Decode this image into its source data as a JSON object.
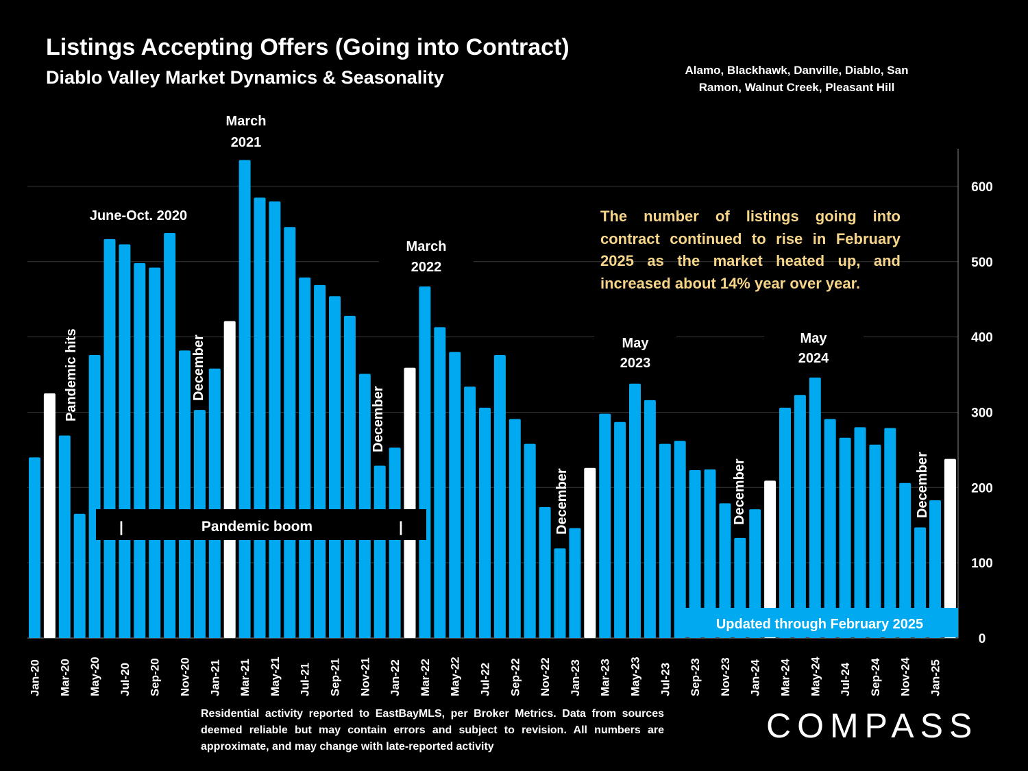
{
  "title": "Listings Accepting Offers (Going into Contract)",
  "subtitle": "Diablo Valley Market Dynamics & Seasonality",
  "region_lines": [
    "Alamo, Blackhawk, Danville, Diablo, San",
    "Ramon, Walnut Creek, Pleasant Hill"
  ],
  "note": "The number of listings going into contract continued to rise in February 2025 as the market heated up, and increased about 14% year over year.",
  "footnote": "Residential activity reported to EastBayMLS, per Broker Metrics. Data from sources deemed reliable but may contain errors and subject to revision. All numbers are approximate, and may change with late-reported activity",
  "logo_text": "COMPASS",
  "banner_text": "Updated through February 2025",
  "colors": {
    "bar": "#00a9f0",
    "highlight": "#ffffff",
    "note": "#f6d58a",
    "background": "#000000"
  },
  "annotations": {
    "pandemic_hits": "Pandemic hits",
    "june_oct_2020": "June-Oct. 2020",
    "march_2021": [
      "March",
      "2021"
    ],
    "march_2022": [
      "March",
      "2022"
    ],
    "may_2023": [
      "May",
      "2023"
    ],
    "may_2024": [
      "May",
      "2024"
    ],
    "december": "December",
    "pandemic_boom": "Pandemic boom",
    "boom_marker": "|"
  },
  "chart_data": {
    "type": "bar",
    "y_axis_side": "right",
    "ylim": [
      0,
      650
    ],
    "yticks": [
      0,
      100,
      200,
      300,
      400,
      500,
      600
    ],
    "grid": true,
    "categories": [
      "Jan-20",
      "Feb-20",
      "Mar-20",
      "Apr-20",
      "May-20",
      "Jun-20",
      "Jul-20",
      "Aug-20",
      "Sep-20",
      "Oct-20",
      "Nov-20",
      "Dec-20",
      "Jan-21",
      "Feb-21",
      "Mar-21",
      "Apr-21",
      "May-21",
      "Jun-21",
      "Jul-21",
      "Aug-21",
      "Sep-21",
      "Oct-21",
      "Nov-21",
      "Dec-21",
      "Jan-22",
      "Feb-22",
      "Mar-22",
      "Apr-22",
      "May-22",
      "Jun-22",
      "Jul-22",
      "Aug-22",
      "Sep-22",
      "Oct-22",
      "Nov-22",
      "Dec-22",
      "Jan-23",
      "Feb-23",
      "Mar-23",
      "Apr-23",
      "May-23",
      "Jun-23",
      "Jul-23",
      "Aug-23",
      "Sep-23",
      "Oct-23",
      "Nov-23",
      "Dec-23",
      "Jan-24",
      "Feb-24",
      "Mar-24",
      "Apr-24",
      "May-24",
      "Jun-24",
      "Jul-24",
      "Aug-24",
      "Sep-24",
      "Oct-24",
      "Nov-24",
      "Dec-24",
      "Jan-25",
      "Feb-25"
    ],
    "tick_labels": [
      "Jan-20",
      "Mar-20",
      "May-20",
      "Jul-20",
      "Sep-20",
      "Nov-20",
      "Jan-21",
      "Mar-21",
      "May-21",
      "Jul-21",
      "Sep-21",
      "Nov-21",
      "Jan-22",
      "Mar-22",
      "May-22",
      "Jul-22",
      "Sep-22",
      "Nov-22",
      "Jan-23",
      "Mar-23",
      "May-23",
      "Jul-23",
      "Sep-23",
      "Nov-23",
      "Jan-24",
      "Mar-24",
      "May-24",
      "Jul-24",
      "Sep-24",
      "Nov-24",
      "Jan-25"
    ],
    "values": [
      240,
      325,
      269,
      165,
      376,
      530,
      523,
      498,
      492,
      538,
      382,
      303,
      358,
      421,
      635,
      585,
      580,
      546,
      479,
      469,
      454,
      428,
      351,
      229,
      253,
      359,
      467,
      413,
      380,
      334,
      306,
      376,
      291,
      258,
      174,
      119,
      146,
      226,
      298,
      287,
      338,
      316,
      258,
      262,
      223,
      224,
      179,
      133,
      171,
      209,
      306,
      323,
      346,
      291,
      266,
      280,
      257,
      279,
      206,
      147,
      183,
      238
    ],
    "highlighted": [
      "Feb-20",
      "Feb-21",
      "Feb-22",
      "Feb-23",
      "Feb-24",
      "Feb-25"
    ]
  }
}
